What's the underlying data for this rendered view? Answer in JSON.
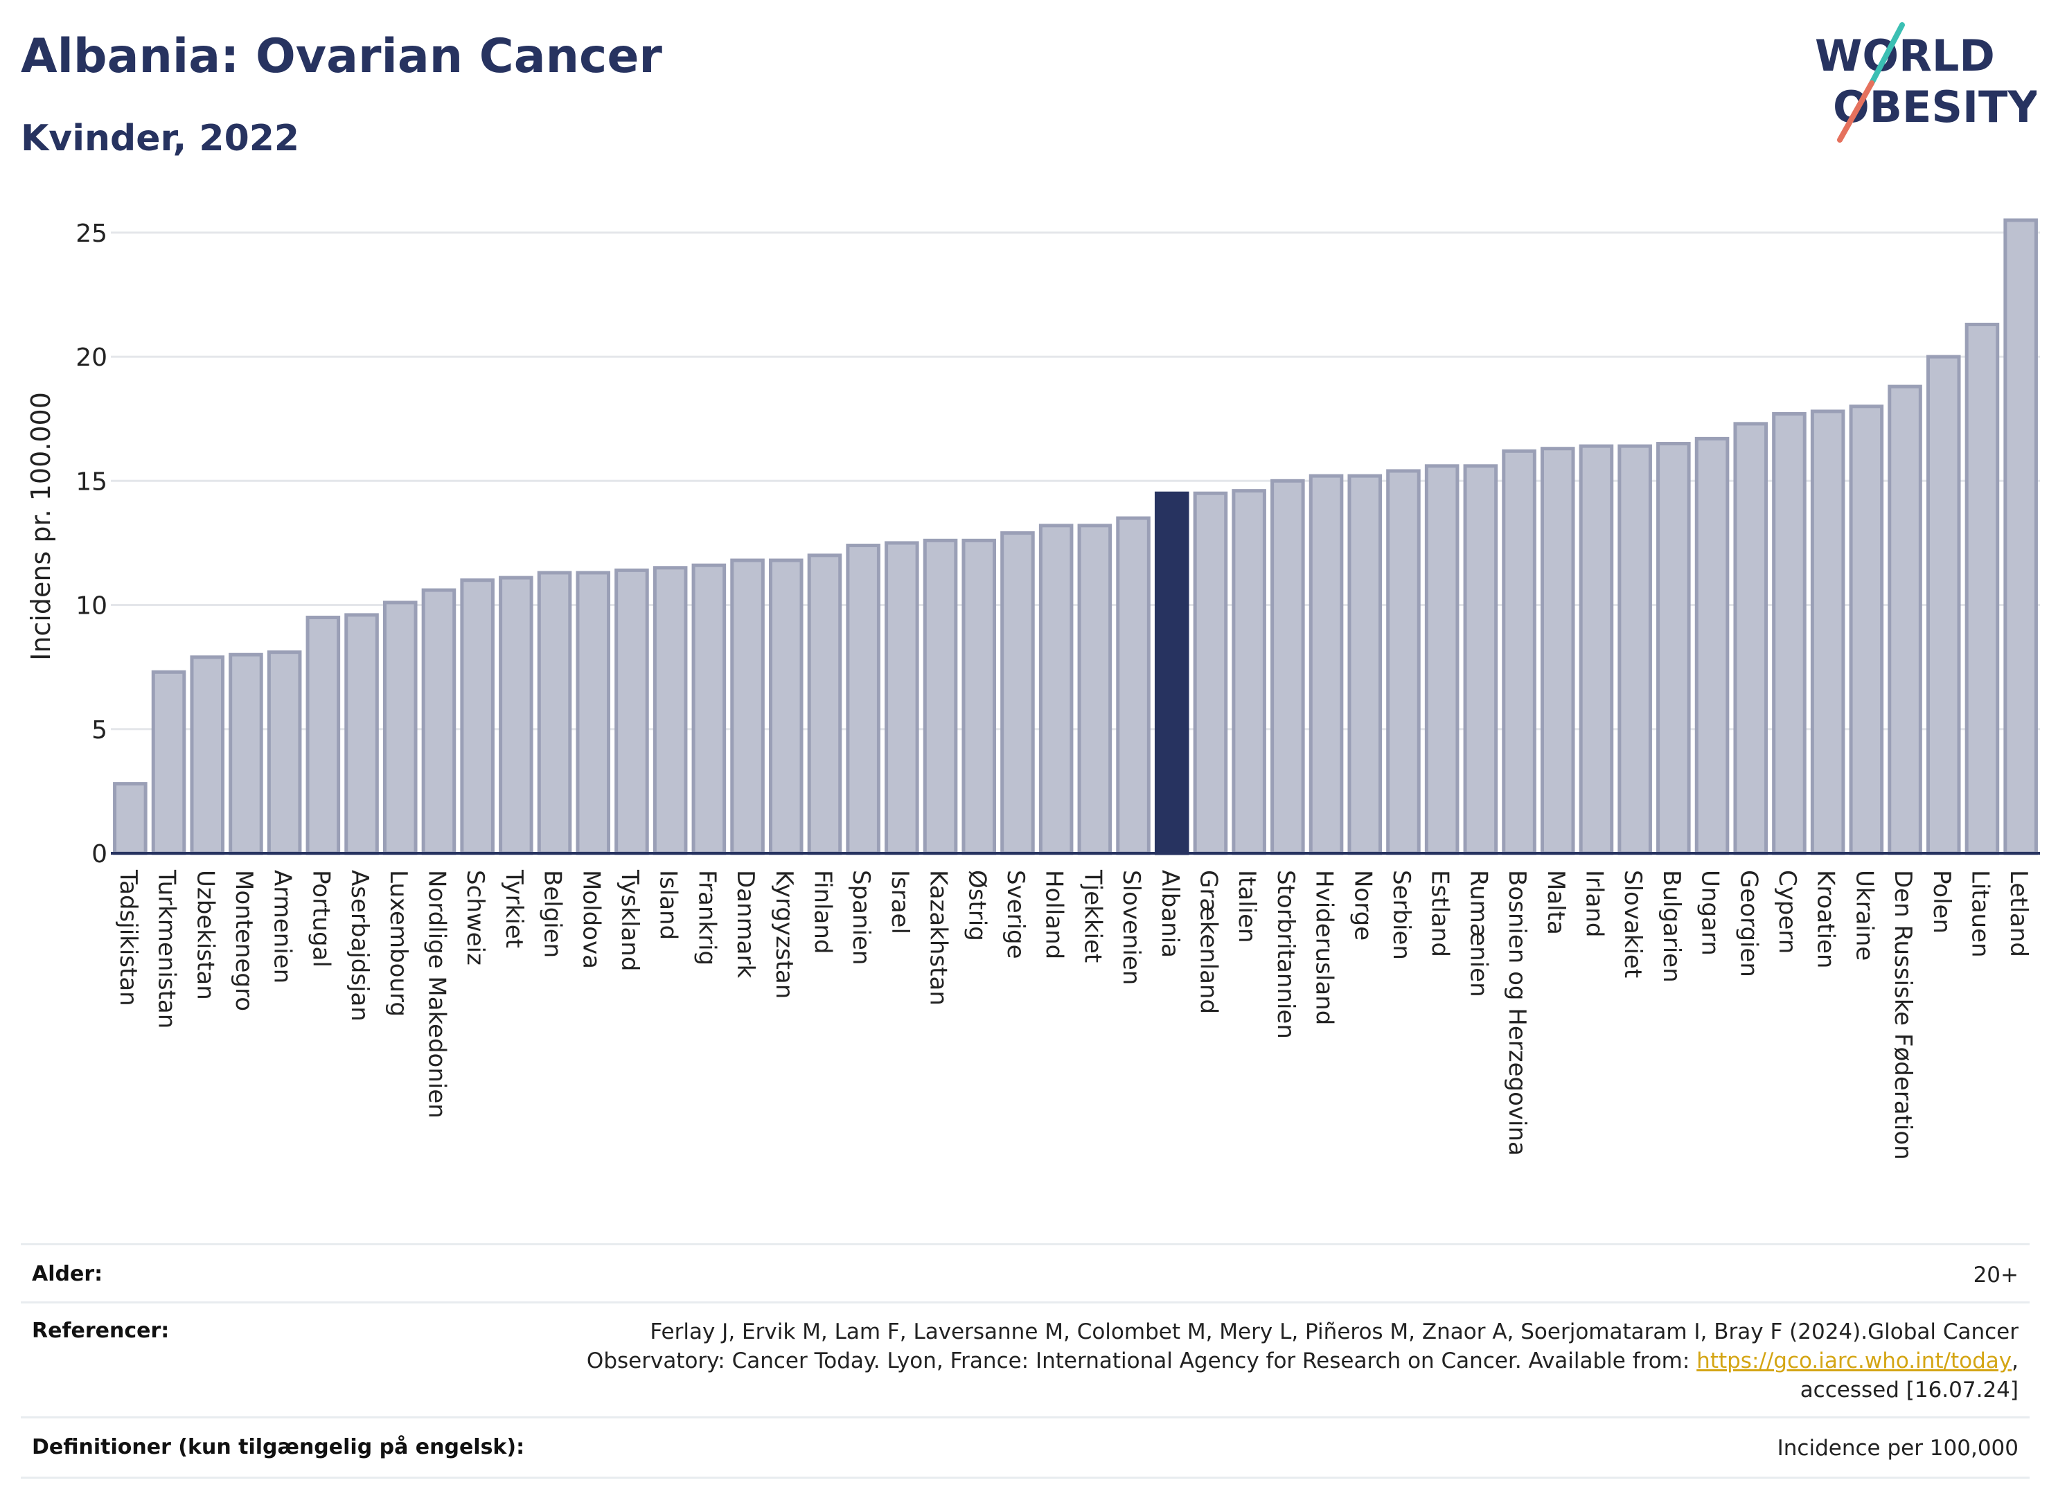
{
  "header": {
    "title": "Albania: Ovarian Cancer",
    "subtitle": "Kvinder, 2022",
    "logo_line1": "WORLD",
    "logo_line2": "OBESITY"
  },
  "colors": {
    "primary": "#273360",
    "bar_default": "#bdc1d0",
    "bar_edge": "#9a9fb6",
    "highlight": "#273360",
    "link": "#d4a514",
    "logo_teal": "#3bbfb3",
    "logo_coral": "#e5715d"
  },
  "chart_data": {
    "type": "bar",
    "ylabel": "Incidens pr. 100.000",
    "xlabel": "",
    "ylim": [
      0,
      26
    ],
    "yticks": [
      0,
      5,
      10,
      15,
      20,
      25
    ],
    "grid": true,
    "highlight": "Albania",
    "categories": [
      "Tadsjikistan",
      "Turkmenistan",
      "Uzbekistan",
      "Montenegro",
      "Armenien",
      "Portugal",
      "Aserbajdsjan",
      "Luxembourg",
      "Nordlige Makedonien",
      "Schweiz",
      "Tyrkiet",
      "Belgien",
      "Moldova",
      "Tyskland",
      "Island",
      "Frankrig",
      "Danmark",
      "Kyrgyzstan",
      "Finland",
      "Spanien",
      "Israel",
      "Kazakhstan",
      "Østrig",
      "Sverige",
      "Holland",
      "Tjekkiet",
      "Slovenien",
      "Albania",
      "Grækenland",
      "Italien",
      "Storbritannien",
      "Hviderusland",
      "Norge",
      "Serbien",
      "Estland",
      "Rumænien",
      "Bosnien og Herzegovina",
      "Malta",
      "Irland",
      "Slovakiet",
      "Bulgarien",
      "Ungarn",
      "Georgien",
      "Cypern",
      "Kroatien",
      "Ukraine",
      "Den Russiske Føderation",
      "Polen",
      "Litauen",
      "Letland"
    ],
    "values": [
      2.8,
      7.3,
      7.9,
      8.0,
      8.1,
      9.5,
      9.6,
      10.1,
      10.6,
      11.0,
      11.1,
      11.3,
      11.3,
      11.4,
      11.5,
      11.6,
      11.8,
      11.8,
      12.0,
      12.4,
      12.5,
      12.6,
      12.6,
      12.9,
      13.2,
      13.2,
      13.5,
      14.5,
      14.5,
      14.6,
      15.0,
      15.2,
      15.2,
      15.4,
      15.6,
      15.6,
      16.2,
      16.3,
      16.4,
      16.4,
      16.5,
      16.7,
      17.3,
      17.7,
      17.8,
      18.0,
      18.8,
      20.0,
      21.3,
      25.5
    ]
  },
  "footer": {
    "age_label": "Alder:",
    "age_value": "20+",
    "ref_label": "Referencer:",
    "ref_line1": "Ferlay J, Ervik M, Lam F, Laversanne M, Colombet M, Mery L, Piñeros M, Znaor A, Soerjomataram I, Bray F (2024).Global Cancer",
    "ref_line2_pre": "Observatory: Cancer Today. Lyon, France: International Agency for Research on Cancer. Available from: ",
    "ref_link": "https://gco.iarc.who.int/today",
    "ref_line2_post": ",",
    "ref_line3": "accessed [16.07.24]",
    "def_label": "Definitioner (kun tilgængelig på engelsk):",
    "def_value": "Incidence per 100,000"
  }
}
